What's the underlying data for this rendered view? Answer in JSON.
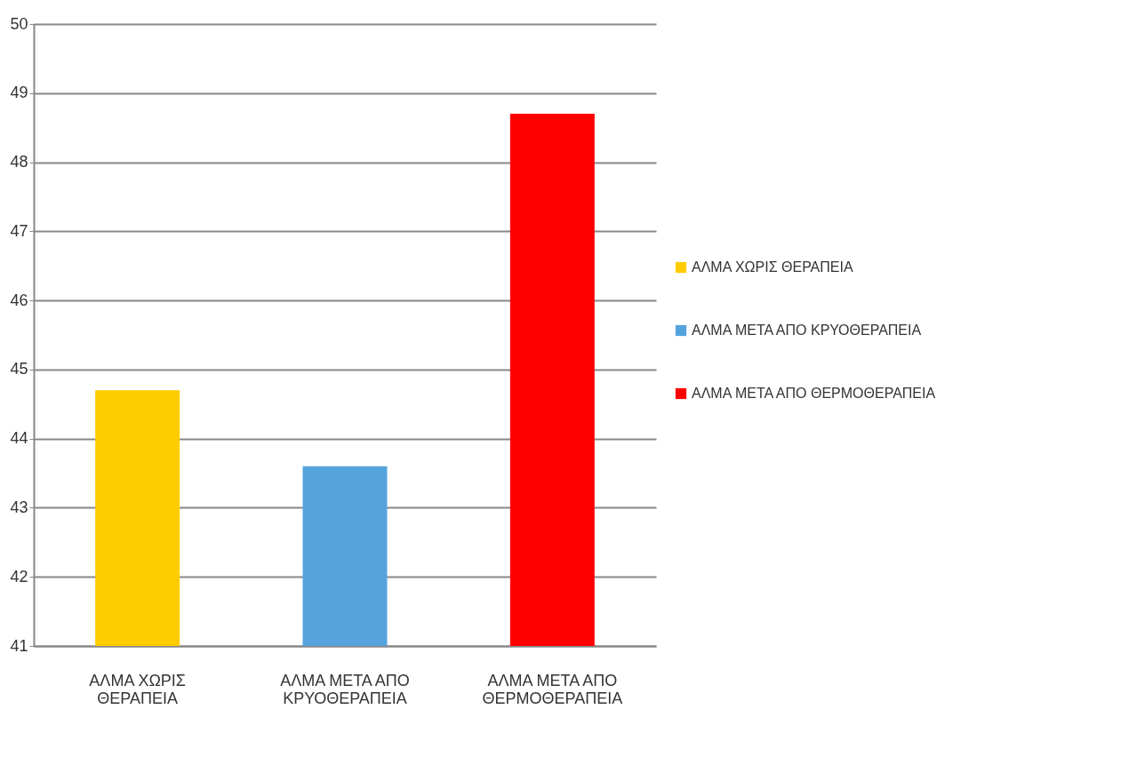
{
  "chart_data": {
    "type": "bar",
    "categories": [
      "ΑΛΜΑ ΧΩΡΙΣ ΘΕΡΑΠΕΙΑ",
      "ΑΛΜΑ ΜΕΤΑ ΑΠΟ ΚΡΥΟΘΕΡΑΠΕΙΑ",
      "ΑΛΜΑ ΜΕΤΑ ΑΠΟ ΘΕΡΜΟΘΕΡΑΠΕΙΑ"
    ],
    "series": [
      {
        "name": "ΑΛΜΑ ΧΩΡΙΣ ΘΕΡΑΠΕΙΑ",
        "color": "#ffcc00",
        "values": [
          44.7,
          null,
          null
        ]
      },
      {
        "name": "ΑΛΜΑ ΜΕΤΑ ΑΠΟ ΚΡΥΟΘΕΡΑΠΕΙΑ",
        "color": "#55a3dd",
        "values": [
          null,
          43.6,
          null
        ]
      },
      {
        "name": "ΑΛΜΑ ΜΕΤΑ ΑΠΟ ΘΕΡΜΟΘΕΡΑΠΕΙΑ",
        "color": "#ff0000",
        "values": [
          null,
          null,
          48.7
        ]
      }
    ],
    "ylim": [
      41,
      50
    ],
    "yticks": [
      41,
      42,
      43,
      44,
      45,
      46,
      47,
      48,
      49,
      50
    ],
    "grid": "y",
    "legend": "right"
  }
}
